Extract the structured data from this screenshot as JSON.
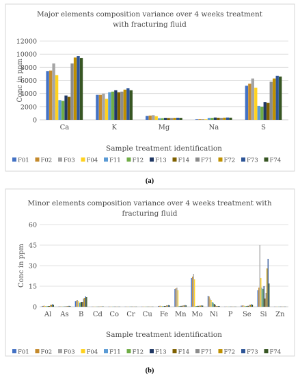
{
  "chart_data": [
    {
      "type": "bar",
      "panel_label": "(a)",
      "title": "Major elements composition variance over 4 weeks treatment with fracturing fluid",
      "title_lines": [
        "Major elements composition variance over 4 weeks treatment",
        "with fracturing fluid"
      ],
      "xlabel": "Sample treatment identification",
      "ylabel": "Conc in ppm",
      "ylim": [
        0,
        12000
      ],
      "yticks": [
        "0",
        "2000",
        "4000",
        "6000",
        "8000",
        "10000",
        "12000"
      ],
      "grid": true,
      "legend_position": "bottom",
      "categories": [
        "Ca",
        "K",
        "Mg",
        "Na",
        "S"
      ],
      "series": [
        {
          "name": "F01",
          "color": "#4472C4",
          "values": [
            7400,
            3800,
            600,
            80,
            5200
          ]
        },
        {
          "name": "F02",
          "color": "#C48A2C",
          "values": [
            7500,
            3800,
            650,
            90,
            5500
          ]
        },
        {
          "name": "F03",
          "color": "#A5A5A5",
          "values": [
            8600,
            4000,
            700,
            100,
            6300
          ]
        },
        {
          "name": "F04",
          "color": "#FFD21F",
          "values": [
            6800,
            3200,
            550,
            80,
            4900
          ]
        },
        {
          "name": "F11",
          "color": "#5B9BD5",
          "values": [
            3000,
            4200,
            250,
            300,
            2100
          ]
        },
        {
          "name": "F12",
          "color": "#70AD47",
          "values": [
            2900,
            4300,
            250,
            300,
            2000
          ]
        },
        {
          "name": "F13",
          "color": "#203864",
          "values": [
            3700,
            4500,
            300,
            350,
            2700
          ]
        },
        {
          "name": "F14",
          "color": "#7F6000",
          "values": [
            3500,
            4200,
            280,
            320,
            2600
          ]
        },
        {
          "name": "F71",
          "color": "#8C8C8C",
          "values": [
            8600,
            4300,
            280,
            300,
            5800
          ]
        },
        {
          "name": "F72",
          "color": "#BF9000",
          "values": [
            9500,
            4600,
            300,
            330,
            6300
          ]
        },
        {
          "name": "F73",
          "color": "#2E5597",
          "values": [
            9700,
            4800,
            320,
            350,
            6700
          ]
        },
        {
          "name": "F74",
          "color": "#375623",
          "values": [
            9400,
            4500,
            300,
            330,
            6600
          ]
        }
      ]
    },
    {
      "type": "bar",
      "panel_label": "(b)",
      "title": "Minor elements composition variance over 4 weeks treatment with fracturing fluid",
      "title_lines": [
        "Minor elements composition variance over 4 weeks treatment with",
        "fracturing fluid"
      ],
      "xlabel": "Sample treatment identification",
      "ylabel": "Conc in ppm",
      "ylim": [
        0,
        60
      ],
      "yticks": [
        "0",
        "15",
        "30",
        "45",
        "60"
      ],
      "grid": true,
      "legend_position": "bottom",
      "categories": [
        "Al",
        "As",
        "B",
        "Cd",
        "Co",
        "Cr",
        "Cu",
        "Fe",
        "Mn",
        "Mo",
        "Ni",
        "P",
        "Se",
        "Si",
        "Zn"
      ],
      "series": [
        {
          "name": "F01",
          "color": "#4472C4",
          "values": [
            0.5,
            0.2,
            4.0,
            0.1,
            0.1,
            0.1,
            0.1,
            0.5,
            13.0,
            21.0,
            8.0,
            0.1,
            0.8,
            12.0,
            0.1
          ]
        },
        {
          "name": "F02",
          "color": "#C48A2C",
          "values": [
            0.6,
            0.2,
            4.5,
            0.1,
            0.1,
            0.1,
            0.1,
            0.6,
            13.5,
            22.0,
            7.5,
            0.1,
            0.9,
            14.0,
            0.1
          ]
        },
        {
          "name": "F03",
          "color": "#A5A5A5",
          "values": [
            0.8,
            0.3,
            5.0,
            0.1,
            0.1,
            0.1,
            0.1,
            0.7,
            14.0,
            24.0,
            6.0,
            0.2,
            1.0,
            45.0,
            0.1
          ]
        },
        {
          "name": "F04",
          "color": "#FFD21F",
          "values": [
            0.5,
            0.2,
            4.0,
            0.1,
            0.1,
            0.1,
            0.1,
            0.5,
            12.0,
            20.0,
            5.0,
            0.1,
            0.7,
            21.0,
            0.1
          ]
        },
        {
          "name": "F11",
          "color": "#5B9BD5",
          "values": [
            0.4,
            0.2,
            3.0,
            0.1,
            0.1,
            0.1,
            0.1,
            0.4,
            0.5,
            0.5,
            3.5,
            0.1,
            0.5,
            14.0,
            0.1
          ]
        },
        {
          "name": "F12",
          "color": "#70AD47",
          "values": [
            0.4,
            0.2,
            3.2,
            0.1,
            0.1,
            0.1,
            0.1,
            0.4,
            0.5,
            0.5,
            3.0,
            0.1,
            0.5,
            13.0,
            0.1
          ]
        },
        {
          "name": "F13",
          "color": "#203864",
          "values": [
            0.5,
            0.2,
            3.5,
            0.1,
            0.1,
            0.1,
            0.1,
            0.5,
            0.6,
            0.6,
            2.0,
            0.1,
            0.6,
            15.0,
            0.1
          ]
        },
        {
          "name": "F14",
          "color": "#7F6000",
          "values": [
            0.5,
            0.2,
            3.5,
            0.1,
            0.1,
            0.1,
            0.1,
            0.5,
            0.6,
            0.6,
            1.5,
            0.1,
            0.6,
            6.0,
            0.1
          ]
        },
        {
          "name": "F71",
          "color": "#8C8C8C",
          "values": [
            1.5,
            0.5,
            6.0,
            0.2,
            0.1,
            0.1,
            0.1,
            1.0,
            1.0,
            0.8,
            0.5,
            0.1,
            1.5,
            10.0,
            0.1
          ]
        },
        {
          "name": "F72",
          "color": "#BF9000",
          "values": [
            1.5,
            0.5,
            6.5,
            0.2,
            0.1,
            0.1,
            0.1,
            1.0,
            1.0,
            0.8,
            0.5,
            0.1,
            1.5,
            28.0,
            0.1
          ]
        },
        {
          "name": "F73",
          "color": "#2E5597",
          "values": [
            1.8,
            0.6,
            7.5,
            0.2,
            0.1,
            0.1,
            0.1,
            1.2,
            1.2,
            1.0,
            0.5,
            0.1,
            1.8,
            35.0,
            0.1
          ]
        },
        {
          "name": "F74",
          "color": "#375623",
          "values": [
            1.5,
            0.5,
            7.0,
            0.2,
            0.1,
            0.1,
            0.1,
            1.0,
            1.0,
            0.8,
            0.5,
            0.1,
            1.5,
            17.0,
            0.1
          ]
        }
      ]
    }
  ]
}
